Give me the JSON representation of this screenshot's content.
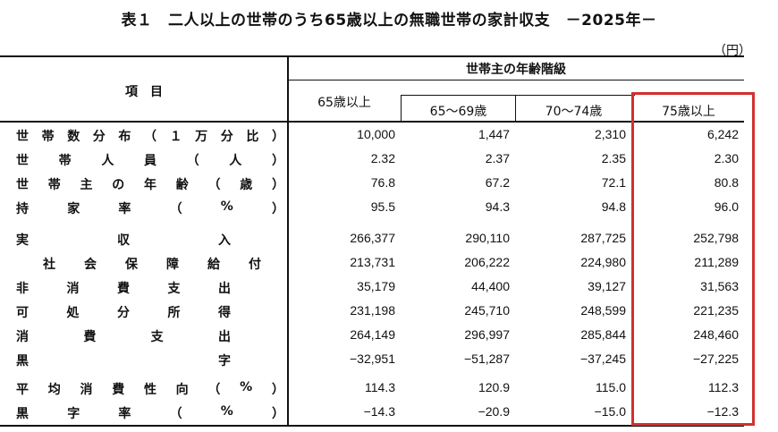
{
  "title": "表１　二人以上の世帯のうち65歳以上の無職世帯の家計収支　－2025年－",
  "unit": "（円）",
  "header": {
    "item_col": "項　目",
    "group": "世帯主の年齢階級",
    "columns": [
      "65歳以上",
      "65～69歳",
      "70～74歳",
      "75歳以上"
    ]
  },
  "highlight": {
    "column": "75歳以上",
    "color": "#d23030"
  },
  "rows": [
    {
      "chars": [
        "世",
        "帯",
        "数",
        "分",
        "布",
        "（",
        "１",
        "万",
        "分",
        "比",
        "）"
      ],
      "values": [
        "10,000",
        "1,447",
        "2,310",
        "6,242"
      ]
    },
    {
      "chars": [
        "世",
        "帯",
        "人",
        "員",
        "（",
        "人",
        "）"
      ],
      "values": [
        "2.32",
        "2.37",
        "2.35",
        "2.30"
      ]
    },
    {
      "chars": [
        "世",
        "帯",
        "主",
        "の",
        "年",
        "齢",
        "（",
        "歳",
        "）"
      ],
      "values": [
        "76.8",
        "67.2",
        "72.1",
        "80.8"
      ]
    },
    {
      "chars": [
        "持",
        "家",
        "率",
        "（",
        "%",
        "）"
      ],
      "values": [
        "95.5",
        "94.3",
        "94.8",
        "96.0"
      ]
    },
    {
      "chars": [
        "実",
        "収",
        "入"
      ],
      "values": [
        "266,377",
        "290,110",
        "287,725",
        "252,798"
      ]
    },
    {
      "chars": [
        "社",
        "会",
        "保",
        "障",
        "給",
        "付"
      ],
      "values": [
        "213,731",
        "206,222",
        "224,980",
        "211,289"
      ]
    },
    {
      "chars": [
        "非",
        "消",
        "費",
        "支",
        "出"
      ],
      "values": [
        "35,179",
        "44,400",
        "39,127",
        "31,563"
      ]
    },
    {
      "chars": [
        "可",
        "処",
        "分",
        "所",
        "得"
      ],
      "values": [
        "231,198",
        "245,710",
        "248,599",
        "221,235"
      ]
    },
    {
      "chars": [
        "消",
        "費",
        "支",
        "出"
      ],
      "values": [
        "264,149",
        "296,997",
        "285,844",
        "248,460"
      ]
    },
    {
      "chars": [
        "黒",
        "字"
      ],
      "values": [
        "-32,951",
        "-51,287",
        "-37,245",
        "-27,225"
      ]
    },
    {
      "chars": [
        "平",
        "均",
        "消",
        "費",
        "性",
        "向",
        "（",
        "%",
        "）"
      ],
      "values": [
        "114.3",
        "120.9",
        "115.0",
        "112.3"
      ]
    },
    {
      "chars": [
        "黒",
        "字",
        "率",
        "（",
        "%",
        "）"
      ],
      "values": [
        "-14.3",
        "-20.9",
        "-15.0",
        "-12.3"
      ]
    }
  ]
}
